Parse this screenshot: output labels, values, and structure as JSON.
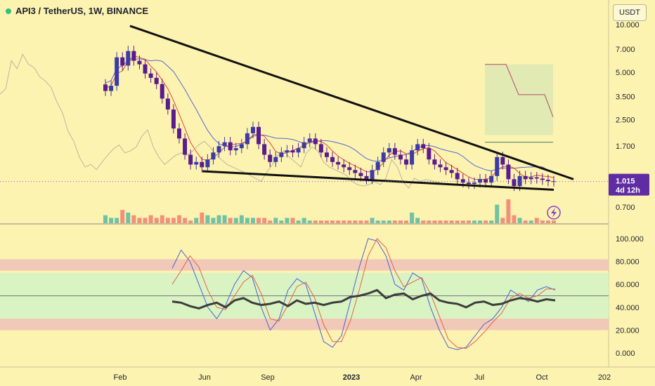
{
  "header": {
    "symbol": "API3 / TetherUS, 1W, BINANCE",
    "currency": "USDT"
  },
  "price_tag": {
    "price": "1.015",
    "countdown": "4d 12h"
  },
  "colors": {
    "background": "#fdf3b0",
    "bull_candle": "#3b3ba8",
    "bear_candle": "#5a1c8c",
    "ma_red": "#e4463b",
    "ma_blue": "#5566d8",
    "lagging": "#b9b7a0",
    "trendline": "#111111",
    "volume_up": "#6fc3a4",
    "volume_down": "#f2907a",
    "cloud": "#dde9b3",
    "stoch_k": "#4f5fd6",
    "stoch_d": "#e8604a",
    "rsi": "#3d3d3d",
    "overbought_band": "#f0c9b9",
    "mid_band": "#d9f4c2",
    "price_tag_bg": "#5f2ca3"
  },
  "chart_data": [
    {
      "type": "candlestick",
      "panel": "price",
      "scale": "log",
      "y_ticks": [
        "10.000",
        "7.000",
        "5.000",
        "3.500",
        "2.500",
        "1.700",
        "1.000",
        "0.700"
      ],
      "x_ticks": [
        "Feb",
        "Jun",
        "Sep",
        "2023",
        "Apr",
        "Jul",
        "Oct",
        "202"
      ],
      "last_price": 1.015,
      "candles_close": [
        3.8,
        4.1,
        6.2,
        5.5,
        6.8,
        5.9,
        5.6,
        4.9,
        4.6,
        4.2,
        3.4,
        2.9,
        2.2,
        1.9,
        1.5,
        1.3,
        1.35,
        1.25,
        1.4,
        1.55,
        1.7,
        1.8,
        1.6,
        1.65,
        1.75,
        2.05,
        2.25,
        1.75,
        1.5,
        1.35,
        1.45,
        1.55,
        1.6,
        1.55,
        1.65,
        1.8,
        1.9,
        1.75,
        1.55,
        1.45,
        1.35,
        1.3,
        1.25,
        1.2,
        1.15,
        1.1,
        1.05,
        1.2,
        1.35,
        1.55,
        1.65,
        1.5,
        1.4,
        1.3,
        1.6,
        1.75,
        1.65,
        1.4,
        1.3,
        1.25,
        1.2,
        1.15,
        1.05,
        1.0,
        0.98,
        1.0,
        1.05,
        1.0,
        1.1,
        1.45,
        1.3,
        1.05,
        0.95,
        1.1,
        1.05,
        1.08,
        1.06,
        1.04,
        1.02,
        1.015
      ],
      "trendline_upper": {
        "from_price": 9.8,
        "to_price": 1.05
      },
      "trendline_lower": {
        "from_price": 1.18,
        "to_price": 0.9
      }
    },
    {
      "type": "bar",
      "panel": "volume",
      "values": [
        3,
        2,
        2,
        5,
        4,
        3,
        2,
        2,
        3,
        2,
        3,
        2,
        2,
        3,
        2,
        1,
        2,
        4,
        3,
        2,
        3,
        3,
        2,
        2,
        3,
        2,
        2,
        2,
        2,
        1,
        2,
        1,
        2,
        2,
        1,
        2,
        1,
        1,
        1,
        1,
        1,
        1,
        1,
        1,
        1,
        1,
        1,
        2,
        1,
        1,
        1,
        1,
        1,
        1,
        4,
        2,
        1,
        1,
        1,
        1,
        1,
        1,
        1,
        1,
        1,
        1,
        1,
        1,
        1,
        7,
        2,
        9,
        3,
        2,
        1,
        1,
        2,
        1,
        1,
        1
      ]
    },
    {
      "type": "line",
      "panel": "oscillator",
      "y_ticks": [
        "100.000",
        "80.000",
        "60.000",
        "40.000",
        "20.000",
        "0.000"
      ],
      "ylim": [
        0,
        100
      ],
      "bands": {
        "overbought": [
          72,
          82
        ],
        "middle": [
          30,
          70
        ],
        "oversold": [
          20,
          30
        ]
      },
      "series": [
        {
          "values": [
            74,
            90,
            80,
            60,
            40,
            30,
            42,
            60,
            72,
            66,
            40,
            20,
            30,
            55,
            65,
            60,
            35,
            10,
            5,
            15,
            45,
            75,
            100,
            98,
            85,
            60,
            55,
            70,
            65,
            40,
            20,
            5,
            3,
            5,
            15,
            25,
            30,
            40,
            55,
            50,
            45,
            55,
            58,
            55
          ]
        },
        {
          "values": [
            60,
            72,
            85,
            75,
            55,
            40,
            38,
            50,
            62,
            68,
            52,
            30,
            28,
            42,
            58,
            62,
            48,
            25,
            10,
            10,
            28,
            55,
            85,
            100,
            92,
            72,
            58,
            62,
            66,
            52,
            32,
            12,
            5,
            4,
            10,
            18,
            27,
            35,
            48,
            52,
            48,
            50,
            56,
            56
          ]
        },
        {
          "values": [
            45,
            44,
            41,
            39,
            42,
            44,
            40,
            46,
            48,
            44,
            42,
            43,
            45,
            41,
            46,
            43,
            44,
            42,
            44,
            45,
            49,
            50,
            52,
            55,
            48,
            51,
            52,
            47,
            50,
            52,
            46,
            44,
            43,
            40,
            44,
            45,
            42,
            43,
            46,
            48,
            47,
            45,
            47,
            46
          ]
        }
      ]
    }
  ]
}
